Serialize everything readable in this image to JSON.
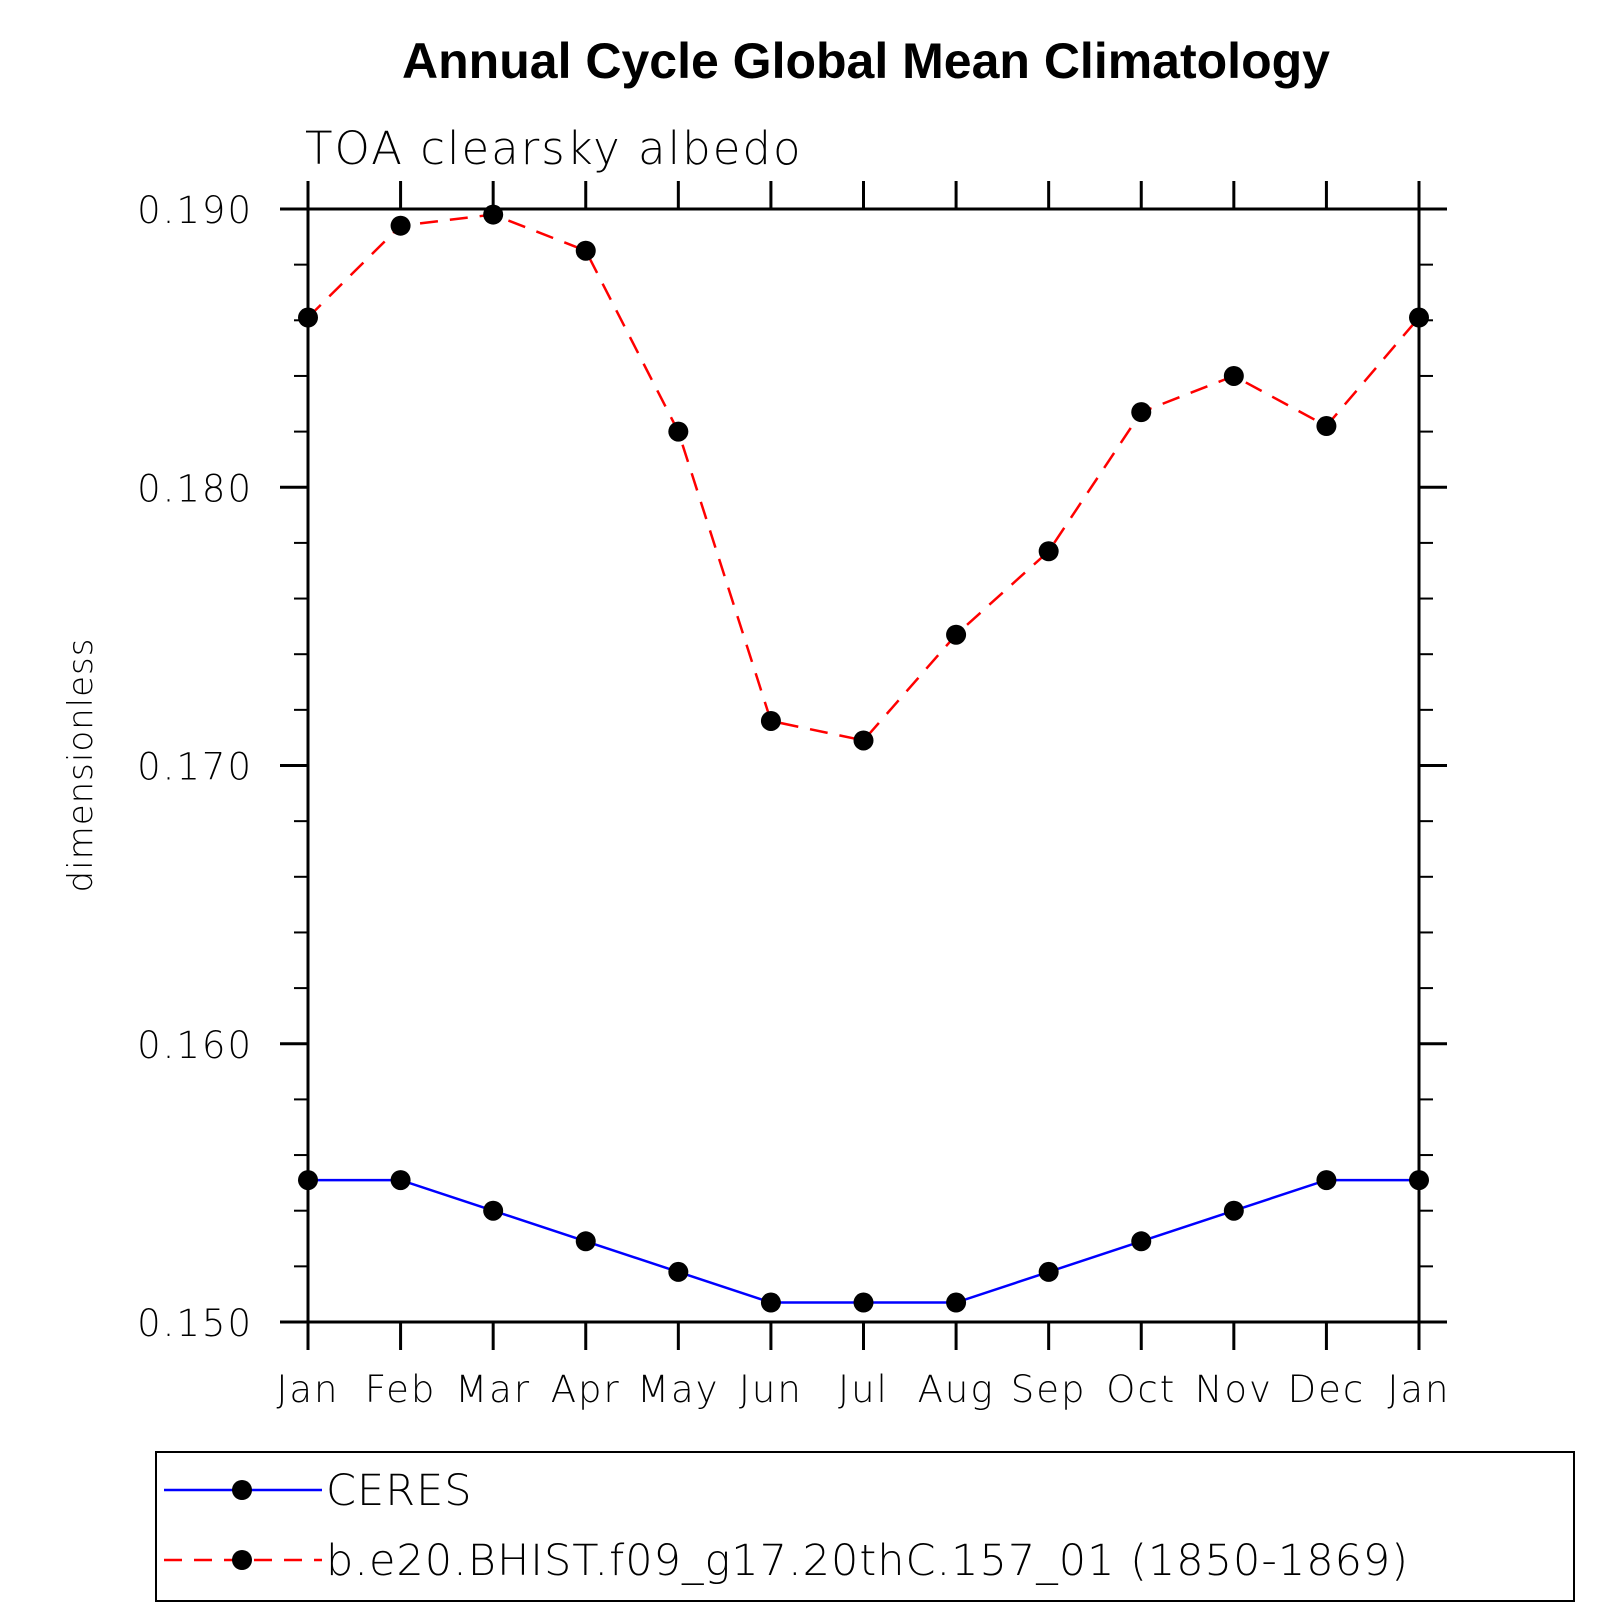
{
  "chart_data": {
    "type": "line",
    "title": "Annual Cycle Global Mean Climatology",
    "subtitle": "TOA clearsky albedo",
    "xlabel": "",
    "ylabel": "dimensionless",
    "categories": [
      "Jan",
      "Feb",
      "Mar",
      "Apr",
      "May",
      "Jun",
      "Jul",
      "Aug",
      "Sep",
      "Oct",
      "Nov",
      "Dec",
      "Jan"
    ],
    "ylim": [
      0.15,
      0.19
    ],
    "yticks": [
      0.15,
      0.16,
      0.17,
      0.18,
      0.19
    ],
    "ytick_labels": [
      "0.150",
      "0.160",
      "0.170",
      "0.180",
      "0.190"
    ],
    "y_minor_step": 0.002,
    "grid": false,
    "series": [
      {
        "name": "CERES",
        "color": "#0000ff",
        "dash": "solid",
        "marker": "circle",
        "values": [
          0.1551,
          0.1551,
          0.154,
          0.1529,
          0.1518,
          0.1507,
          0.1507,
          0.1507,
          0.1518,
          0.1529,
          0.154,
          0.1551,
          0.1551
        ]
      },
      {
        "name": "b.e20.BHIST.f09_g17.20thC.157_01 (1850-1869)",
        "color": "#ff0000",
        "dash": "dashed",
        "marker": "circle",
        "values": [
          0.1861,
          0.1894,
          0.1898,
          0.1885,
          0.182,
          0.1716,
          0.1709,
          0.1747,
          0.1777,
          0.1827,
          0.184,
          0.1822,
          0.1861
        ]
      }
    ],
    "legend_position": "bottom"
  }
}
